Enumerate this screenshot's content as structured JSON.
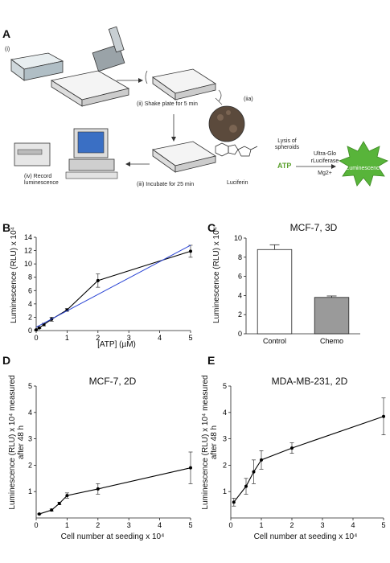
{
  "panel_a": {
    "letter": "A",
    "step1": "(i)",
    "step2": "(ii) Shake plate for 5 min",
    "step2a": "(iia)",
    "step3": "(iii) Incubate for 25 min",
    "step4": "(iv) Record luminescence",
    "lysis": "Lysis of spheroids",
    "enzyme_line1": "Ultra-Glo",
    "enzyme_line2": "rLuciferase",
    "mg": "Mg2+",
    "atp": "ATP",
    "luciferin": "Luciferin",
    "output": "Luminescence",
    "colors": {
      "atp": "#5aa02c",
      "burst": "#58b43a"
    }
  },
  "chart_data": [
    {
      "panel": "B",
      "type": "line",
      "title": "",
      "xlabel": "[ATP] (µM)",
      "ylabel": "Luminescence (RLU) x 10⁴",
      "xlim": [
        0,
        5
      ],
      "ylim": [
        0,
        14
      ],
      "xticks": [
        0,
        1,
        2,
        3,
        4,
        5
      ],
      "yticks": [
        0,
        2,
        4,
        6,
        8,
        10,
        12,
        14
      ],
      "series": [
        {
          "x": [
            0,
            0.1,
            0.25,
            0.5,
            1,
            2,
            5
          ],
          "y": [
            0.1,
            0.4,
            0.9,
            1.7,
            3.1,
            7.5,
            11.9
          ],
          "err": [
            0.1,
            0.1,
            0.2,
            0.3,
            0.2,
            1.0,
            0.9
          ],
          "color": "#000000"
        },
        {
          "x": [
            0,
            5
          ],
          "y": [
            0.5,
            12.8
          ],
          "color": "#2a44d4",
          "fit": true
        }
      ]
    },
    {
      "panel": "C",
      "type": "bar",
      "title": "MCF-7, 3D",
      "xlabel": "",
      "ylabel": "Luminescence (RLU) x 10⁴",
      "categories": [
        "Control",
        "Chemo"
      ],
      "values": [
        8.8,
        3.8
      ],
      "err": [
        0.5,
        0.15
      ],
      "colors": [
        "#ffffff",
        "#9a9a9a"
      ],
      "ylim": [
        0,
        10
      ],
      "yticks": [
        0,
        2,
        4,
        6,
        8,
        10
      ]
    },
    {
      "panel": "D",
      "type": "line",
      "title": "MCF-7, 2D",
      "xlabel": "Cell number at seeding x 10⁴",
      "ylabel": "Luminescence (RLU) x 10⁴ measured after 48 h",
      "xlim": [
        0,
        5
      ],
      "ylim": [
        0,
        5
      ],
      "xticks": [
        0,
        1,
        2,
        3,
        4,
        5
      ],
      "yticks": [
        1,
        2,
        3,
        4,
        5
      ],
      "series": [
        {
          "x": [
            0.1,
            0.5,
            0.75,
            1,
            2,
            5
          ],
          "y": [
            0.15,
            0.3,
            0.55,
            0.85,
            1.1,
            1.9
          ],
          "err": [
            0.02,
            0.04,
            0.05,
            0.1,
            0.2,
            0.6
          ],
          "color": "#000000"
        }
      ]
    },
    {
      "panel": "E",
      "type": "line",
      "title": "MDA-MB-231, 2D",
      "xlabel": "Cell number at seeding x 10⁴",
      "ylabel": "Luminescence (RLU) x 10⁴ measured after 48 h",
      "xlim": [
        0,
        5
      ],
      "ylim": [
        0,
        5
      ],
      "xticks": [
        0,
        1,
        2,
        3,
        4,
        5
      ],
      "yticks": [
        1,
        2,
        3,
        4,
        5
      ],
      "series": [
        {
          "x": [
            0.1,
            0.5,
            0.75,
            1,
            2,
            5
          ],
          "y": [
            0.6,
            1.2,
            1.75,
            2.2,
            2.65,
            3.85
          ],
          "err": [
            0.15,
            0.3,
            0.45,
            0.35,
            0.2,
            0.7
          ],
          "color": "#000000"
        }
      ]
    }
  ]
}
